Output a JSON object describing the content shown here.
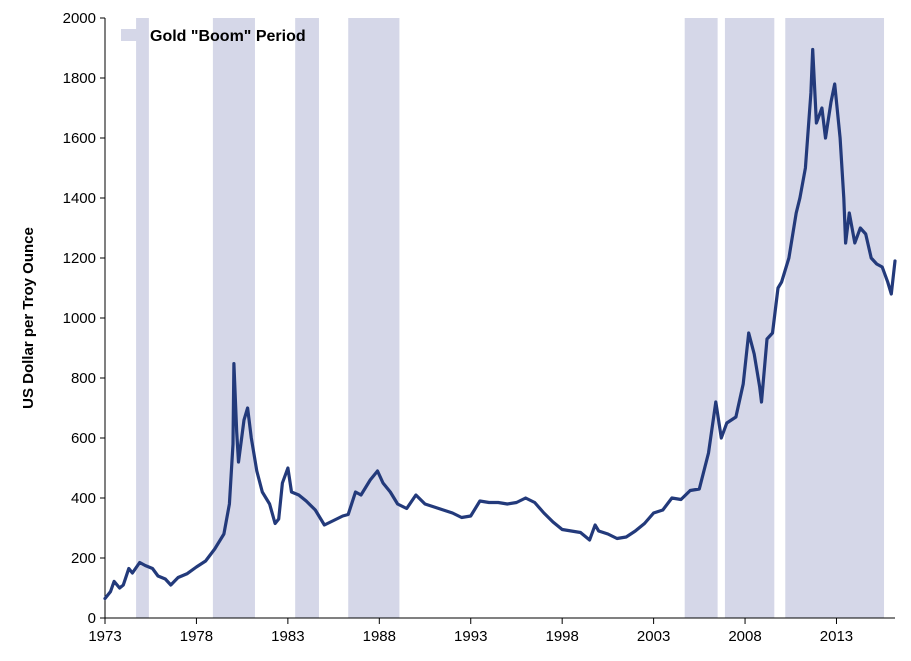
{
  "chart_data": {
    "type": "line",
    "title": "",
    "xlabel": "",
    "ylabel": "US Dollar per Troy Ounce",
    "xlim": [
      1973,
      2016.2
    ],
    "ylim": [
      0,
      2000
    ],
    "x_ticks": [
      "1973",
      "1978",
      "1983",
      "1988",
      "1993",
      "1998",
      "2003",
      "2008",
      "2013"
    ],
    "y_ticks": [
      "0",
      "200",
      "400",
      "600",
      "800",
      "1000",
      "1200",
      "1400",
      "1600",
      "1800",
      "2000"
    ],
    "grid": false,
    "legend": {
      "placement": "top-left",
      "label": "Gold \"Boom\" Period",
      "color": "#d5d7e8"
    },
    "line_color": "#233a7b",
    "boom_periods": [
      [
        1974.7,
        1975.4
      ],
      [
        1978.9,
        1981.2
      ],
      [
        1983.4,
        1984.7
      ],
      [
        1986.3,
        1989.1
      ],
      [
        2004.7,
        2006.5
      ],
      [
        2006.9,
        2009.6
      ],
      [
        2010.2,
        2015.6
      ]
    ],
    "series": [
      {
        "values": [
          [
            1973.0,
            65
          ],
          [
            1973.3,
            88
          ],
          [
            1973.5,
            122
          ],
          [
            1973.8,
            100
          ],
          [
            1974.0,
            110
          ],
          [
            1974.3,
            165
          ],
          [
            1974.5,
            150
          ],
          [
            1974.9,
            185
          ],
          [
            1975.2,
            175
          ],
          [
            1975.6,
            165
          ],
          [
            1975.9,
            140
          ],
          [
            1976.3,
            130
          ],
          [
            1976.6,
            110
          ],
          [
            1977.0,
            135
          ],
          [
            1977.5,
            148
          ],
          [
            1978.0,
            170
          ],
          [
            1978.5,
            190
          ],
          [
            1979.0,
            230
          ],
          [
            1979.5,
            280
          ],
          [
            1979.8,
            380
          ],
          [
            1980.0,
            580
          ],
          [
            1980.05,
            848
          ],
          [
            1980.2,
            620
          ],
          [
            1980.3,
            520
          ],
          [
            1980.6,
            660
          ],
          [
            1980.8,
            700
          ],
          [
            1981.0,
            600
          ],
          [
            1981.3,
            490
          ],
          [
            1981.6,
            420
          ],
          [
            1982.0,
            380
          ],
          [
            1982.3,
            315
          ],
          [
            1982.5,
            330
          ],
          [
            1982.7,
            450
          ],
          [
            1983.0,
            500
          ],
          [
            1983.2,
            420
          ],
          [
            1983.6,
            410
          ],
          [
            1984.0,
            390
          ],
          [
            1984.5,
            360
          ],
          [
            1985.0,
            310
          ],
          [
            1985.5,
            325
          ],
          [
            1986.0,
            340
          ],
          [
            1986.3,
            345
          ],
          [
            1986.7,
            420
          ],
          [
            1987.0,
            410
          ],
          [
            1987.5,
            460
          ],
          [
            1987.9,
            490
          ],
          [
            1988.2,
            450
          ],
          [
            1988.6,
            420
          ],
          [
            1989.0,
            380
          ],
          [
            1989.5,
            365
          ],
          [
            1990.0,
            410
          ],
          [
            1990.5,
            380
          ],
          [
            1991.0,
            370
          ],
          [
            1991.5,
            360
          ],
          [
            1992.0,
            350
          ],
          [
            1992.5,
            335
          ],
          [
            1993.0,
            340
          ],
          [
            1993.5,
            390
          ],
          [
            1994.0,
            385
          ],
          [
            1994.5,
            385
          ],
          [
            1995.0,
            380
          ],
          [
            1995.5,
            385
          ],
          [
            1996.0,
            400
          ],
          [
            1996.5,
            385
          ],
          [
            1997.0,
            350
          ],
          [
            1997.5,
            320
          ],
          [
            1998.0,
            295
          ],
          [
            1998.5,
            290
          ],
          [
            1999.0,
            285
          ],
          [
            1999.5,
            260
          ],
          [
            1999.8,
            310
          ],
          [
            2000.0,
            290
          ],
          [
            2000.5,
            280
          ],
          [
            2001.0,
            265
          ],
          [
            2001.5,
            270
          ],
          [
            2002.0,
            290
          ],
          [
            2002.5,
            315
          ],
          [
            2003.0,
            350
          ],
          [
            2003.5,
            360
          ],
          [
            2004.0,
            400
          ],
          [
            2004.5,
            395
          ],
          [
            2005.0,
            425
          ],
          [
            2005.5,
            430
          ],
          [
            2006.0,
            550
          ],
          [
            2006.4,
            720
          ],
          [
            2006.7,
            600
          ],
          [
            2007.0,
            650
          ],
          [
            2007.5,
            670
          ],
          [
            2007.9,
            780
          ],
          [
            2008.2,
            950
          ],
          [
            2008.5,
            880
          ],
          [
            2008.8,
            770
          ],
          [
            2008.9,
            720
          ],
          [
            2009.2,
            930
          ],
          [
            2009.5,
            950
          ],
          [
            2009.8,
            1100
          ],
          [
            2010.0,
            1120
          ],
          [
            2010.4,
            1200
          ],
          [
            2010.8,
            1350
          ],
          [
            2011.0,
            1400
          ],
          [
            2011.3,
            1500
          ],
          [
            2011.6,
            1750
          ],
          [
            2011.7,
            1895
          ],
          [
            2011.9,
            1650
          ],
          [
            2012.2,
            1700
          ],
          [
            2012.4,
            1600
          ],
          [
            2012.7,
            1720
          ],
          [
            2012.9,
            1780
          ],
          [
            2013.2,
            1600
          ],
          [
            2013.4,
            1400
          ],
          [
            2013.5,
            1250
          ],
          [
            2013.7,
            1350
          ],
          [
            2014.0,
            1250
          ],
          [
            2014.3,
            1300
          ],
          [
            2014.6,
            1280
          ],
          [
            2014.9,
            1200
          ],
          [
            2015.2,
            1180
          ],
          [
            2015.5,
            1170
          ],
          [
            2015.8,
            1120
          ],
          [
            2016.0,
            1080
          ],
          [
            2016.2,
            1190
          ]
        ]
      }
    ]
  }
}
